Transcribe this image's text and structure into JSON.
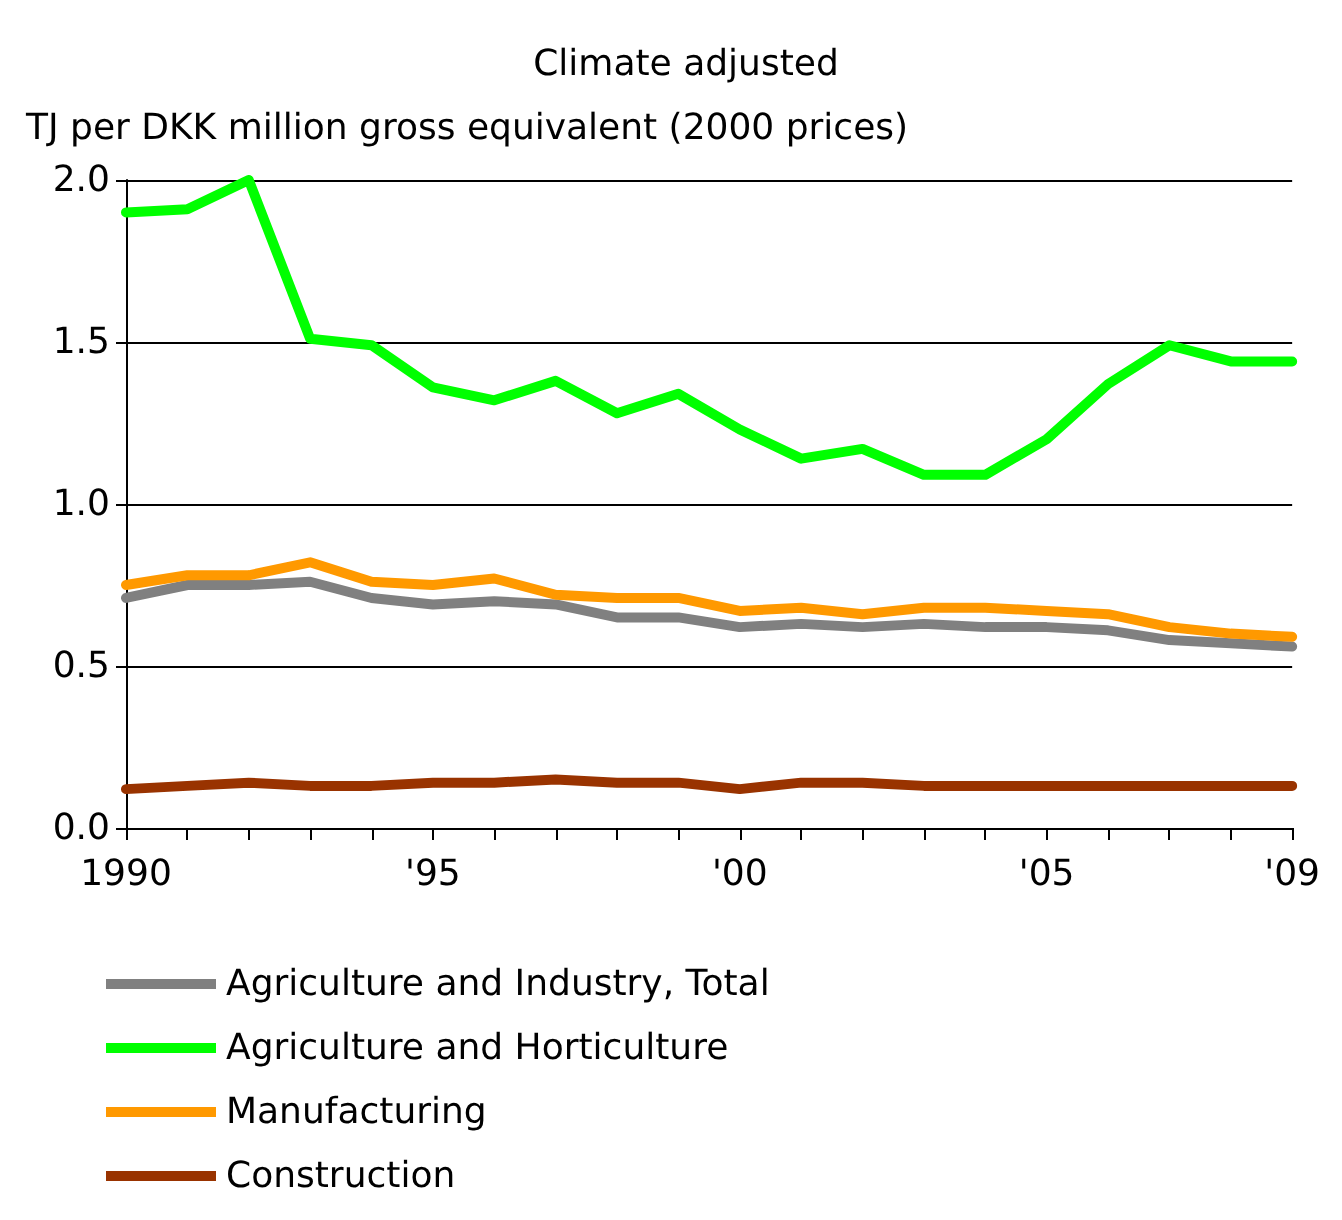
{
  "chart_data": {
    "type": "line",
    "title": "Climate adjusted",
    "ylabel": "TJ per DKK million gross equivalent (2000 prices)",
    "x": [
      1990,
      1991,
      1992,
      1993,
      1994,
      1995,
      1996,
      1997,
      1998,
      1999,
      2000,
      2001,
      2002,
      2003,
      2004,
      2005,
      2006,
      2007,
      2008,
      2009
    ],
    "series": [
      {
        "name": "Agriculture and Industry, Total",
        "color": "#808080",
        "values": [
          0.71,
          0.75,
          0.75,
          0.76,
          0.71,
          0.69,
          0.7,
          0.69,
          0.65,
          0.65,
          0.62,
          0.63,
          0.62,
          0.63,
          0.62,
          0.62,
          0.61,
          0.58,
          0.57,
          0.56
        ]
      },
      {
        "name": "Agriculture and Horticulture",
        "color": "#00ff00",
        "values": [
          1.9,
          1.91,
          2.0,
          1.51,
          1.49,
          1.36,
          1.32,
          1.38,
          1.28,
          1.34,
          1.23,
          1.14,
          1.17,
          1.09,
          1.09,
          1.2,
          1.37,
          1.49,
          1.44,
          1.44
        ]
      },
      {
        "name": "Manufacturing",
        "color": "#ff9900",
        "values": [
          0.75,
          0.78,
          0.78,
          0.82,
          0.76,
          0.75,
          0.77,
          0.72,
          0.71,
          0.71,
          0.67,
          0.68,
          0.66,
          0.68,
          0.68,
          0.67,
          0.66,
          0.62,
          0.6,
          0.59
        ]
      },
      {
        "name": "Construction",
        "color": "#993300",
        "values": [
          0.12,
          0.13,
          0.14,
          0.13,
          0.13,
          0.14,
          0.14,
          0.15,
          0.14,
          0.14,
          0.12,
          0.14,
          0.14,
          0.13,
          0.13,
          0.13,
          0.13,
          0.13,
          0.13,
          0.13
        ]
      }
    ],
    "xlim": [
      1990,
      2009
    ],
    "xticks": [
      {
        "value": 1990,
        "label": "1990"
      },
      {
        "value": 1991,
        "label": null
      },
      {
        "value": 1992,
        "label": null
      },
      {
        "value": 1993,
        "label": null
      },
      {
        "value": 1994,
        "label": null
      },
      {
        "value": 1995,
        "label": "'95"
      },
      {
        "value": 1996,
        "label": null
      },
      {
        "value": 1997,
        "label": null
      },
      {
        "value": 1998,
        "label": null
      },
      {
        "value": 1999,
        "label": null
      },
      {
        "value": 2000,
        "label": "'00"
      },
      {
        "value": 2001,
        "label": null
      },
      {
        "value": 2002,
        "label": null
      },
      {
        "value": 2003,
        "label": null
      },
      {
        "value": 2004,
        "label": null
      },
      {
        "value": 2005,
        "label": "'05"
      },
      {
        "value": 2006,
        "label": null
      },
      {
        "value": 2007,
        "label": null
      },
      {
        "value": 2008,
        "label": null
      },
      {
        "value": 2009,
        "label": "'09"
      }
    ],
    "ylim": [
      0,
      2
    ],
    "yticks": [
      {
        "value": 0,
        "label": "0.0"
      },
      {
        "value": 0.5,
        "label": "0.5"
      },
      {
        "value": 1,
        "label": "1.0"
      },
      {
        "value": 1.5,
        "label": "1.5"
      },
      {
        "value": 2,
        "label": "2.0"
      }
    ],
    "grid": "y",
    "legend": "bottom",
    "marker": "none",
    "line_style": "solid"
  }
}
